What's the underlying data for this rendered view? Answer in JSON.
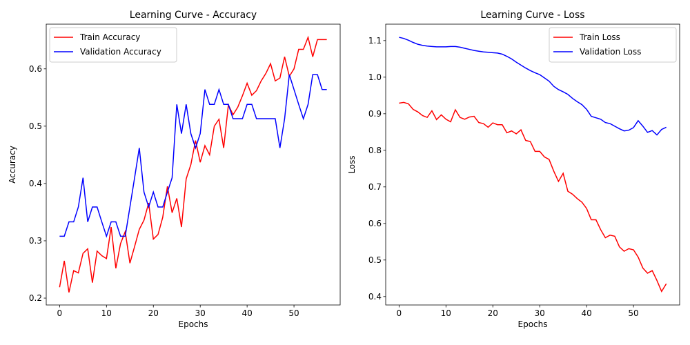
{
  "chart_data": [
    {
      "type": "line",
      "title": "Learning Curve - Accuracy",
      "xlabel": "Epochs",
      "ylabel": "Accuracy",
      "legend": "upper left",
      "xlim": [
        -2.85,
        59.85
      ],
      "xticks": [
        0,
        10,
        20,
        30,
        40,
        50
      ],
      "ylim": [
        0.188,
        0.678
      ],
      "yticks": [
        0.2,
        0.3,
        0.4,
        0.5,
        0.6
      ],
      "x": [
        0,
        1,
        2,
        3,
        4,
        5,
        6,
        7,
        8,
        9,
        10,
        11,
        12,
        13,
        14,
        15,
        16,
        17,
        18,
        19,
        20,
        21,
        22,
        23,
        24,
        25,
        26,
        27,
        28,
        29,
        30,
        31,
        32,
        33,
        34,
        35,
        36,
        37,
        38,
        39,
        40,
        41,
        42,
        43,
        44,
        45,
        46,
        47,
        48,
        49,
        50,
        51,
        52,
        53,
        54,
        55,
        56,
        57
      ],
      "series": [
        {
          "name": "Train Accuracy",
          "color": "#ff0000",
          "values": [
            0.219,
            0.265,
            0.21,
            0.248,
            0.244,
            0.278,
            0.286,
            0.227,
            0.282,
            0.274,
            0.269,
            0.324,
            0.252,
            0.295,
            0.316,
            0.261,
            0.29,
            0.32,
            0.336,
            0.366,
            0.303,
            0.311,
            0.341,
            0.395,
            0.349,
            0.374,
            0.324,
            0.408,
            0.433,
            0.475,
            0.437,
            0.466,
            0.45,
            0.5,
            0.512,
            0.462,
            0.537,
            0.52,
            0.533,
            0.553,
            0.575,
            0.554,
            0.562,
            0.579,
            0.592,
            0.609,
            0.579,
            0.584,
            0.621,
            0.587,
            0.6,
            0.634,
            0.634,
            0.655,
            0.621,
            0.651,
            0.651,
            0.651
          ]
        },
        {
          "name": "Validation Accuracy",
          "color": "#0000ff",
          "values": [
            0.308,
            0.308,
            0.333,
            0.333,
            0.359,
            0.41,
            0.333,
            0.359,
            0.359,
            0.333,
            0.308,
            0.333,
            0.333,
            0.308,
            0.308,
            0.359,
            0.41,
            0.462,
            0.385,
            0.359,
            0.385,
            0.359,
            0.359,
            0.385,
            0.41,
            0.538,
            0.487,
            0.538,
            0.487,
            0.462,
            0.487,
            0.564,
            0.538,
            0.538,
            0.564,
            0.538,
            0.538,
            0.513,
            0.513,
            0.513,
            0.538,
            0.538,
            0.513,
            0.513,
            0.513,
            0.513,
            0.513,
            0.462,
            0.513,
            0.59,
            0.564,
            0.538,
            0.513,
            0.538,
            0.59,
            0.59,
            0.564,
            0.564
          ]
        }
      ]
    },
    {
      "type": "line",
      "title": "Learning Curve - Loss",
      "xlabel": "Epochs",
      "ylabel": "Loss",
      "legend": "upper right",
      "xlim": [
        -2.85,
        59.85
      ],
      "xticks": [
        0,
        10,
        20,
        30,
        40,
        50
      ],
      "ylim": [
        0.377,
        1.145
      ],
      "yticks": [
        0.4,
        0.5,
        0.6,
        0.7,
        0.8,
        0.9,
        {
          "value": 1,
          "label": "1.0"
        },
        1.1
      ],
      "x": [
        0,
        1,
        2,
        3,
        4,
        5,
        6,
        7,
        8,
        9,
        10,
        11,
        12,
        13,
        14,
        15,
        16,
        17,
        18,
        19,
        20,
        21,
        22,
        23,
        24,
        25,
        26,
        27,
        28,
        29,
        30,
        31,
        32,
        33,
        34,
        35,
        36,
        37,
        38,
        39,
        40,
        41,
        42,
        43,
        44,
        45,
        46,
        47,
        48,
        49,
        50,
        51,
        52,
        53,
        54,
        55,
        56,
        57
      ],
      "series": [
        {
          "name": "Train Loss",
          "color": "#ff0000",
          "values": [
            0.929,
            0.931,
            0.927,
            0.912,
            0.905,
            0.895,
            0.89,
            0.908,
            0.884,
            0.897,
            0.885,
            0.878,
            0.911,
            0.89,
            0.885,
            0.891,
            0.893,
            0.876,
            0.873,
            0.863,
            0.875,
            0.87,
            0.87,
            0.848,
            0.853,
            0.845,
            0.856,
            0.827,
            0.824,
            0.797,
            0.797,
            0.782,
            0.775,
            0.743,
            0.715,
            0.737,
            0.688,
            0.68,
            0.668,
            0.658,
            0.641,
            0.61,
            0.61,
            0.583,
            0.561,
            0.568,
            0.565,
            0.536,
            0.524,
            0.531,
            0.528,
            0.508,
            0.478,
            0.464,
            0.471,
            0.444,
            0.414,
            0.435
          ]
        },
        {
          "name": "Validation Loss",
          "color": "#0000ff",
          "values": [
            1.109,
            1.106,
            1.101,
            1.095,
            1.09,
            1.087,
            1.085,
            1.084,
            1.083,
            1.083,
            1.083,
            1.084,
            1.084,
            1.082,
            1.079,
            1.076,
            1.073,
            1.071,
            1.069,
            1.068,
            1.067,
            1.066,
            1.063,
            1.057,
            1.05,
            1.041,
            1.033,
            1.025,
            1.018,
            1.012,
            1.007,
            0.998,
            0.989,
            0.975,
            0.966,
            0.96,
            0.953,
            0.942,
            0.933,
            0.925,
            0.912,
            0.893,
            0.889,
            0.885,
            0.876,
            0.873,
            0.866,
            0.859,
            0.853,
            0.855,
            0.862,
            0.881,
            0.866,
            0.849,
            0.854,
            0.842,
            0.857,
            0.863
          ]
        }
      ]
    }
  ]
}
